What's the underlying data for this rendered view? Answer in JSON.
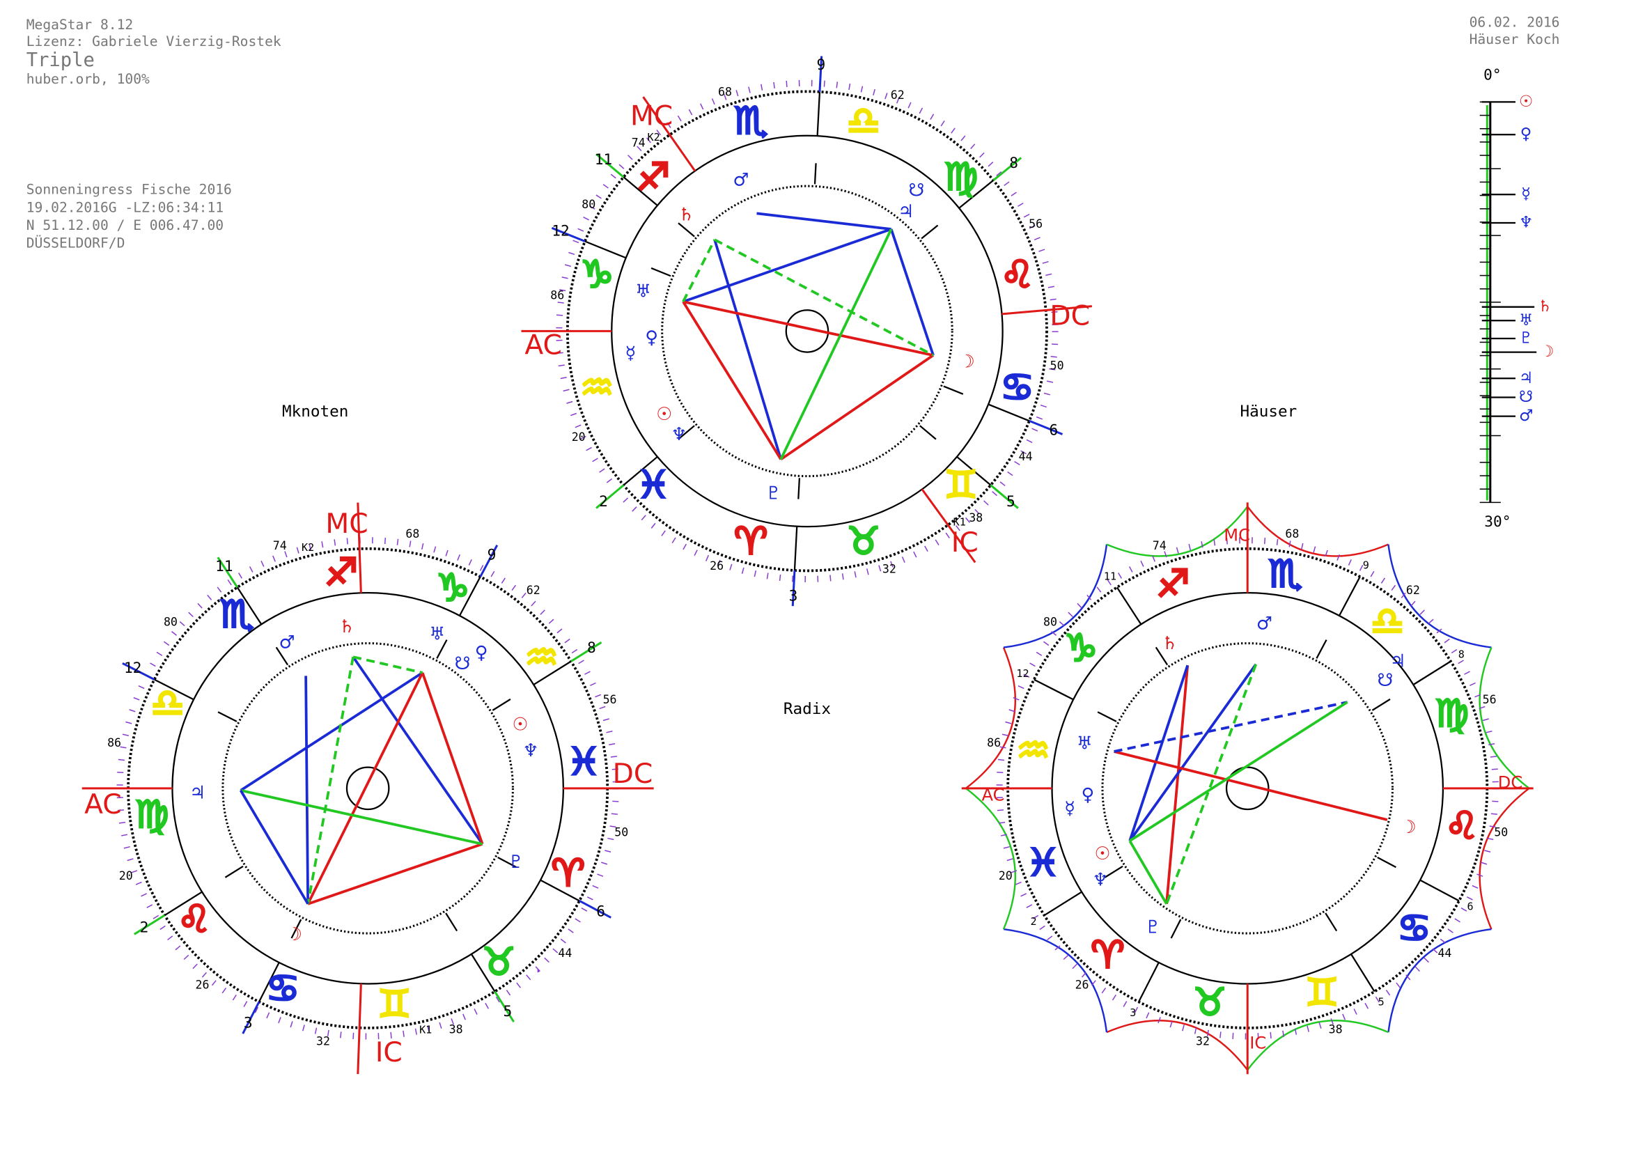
{
  "header": {
    "program": "MegaStar 8.12",
    "license": "Lizenz: Gabriele Vierzig-Rostek",
    "title": "Triple",
    "orb": "huber.orb, 100%"
  },
  "print_info": {
    "date": "06.02. 2016",
    "house_system": "Häuser Koch"
  },
  "event": {
    "name": "Sonneningress Fische 2016",
    "date_time": "19.02.2016G -LZ:06:34:11",
    "coordinates": "N 51.12.00 / E 006.47.00",
    "place": "DÜSSELDORF/D"
  },
  "wheels": [
    {
      "label": "Radix",
      "house_numbers": [
        9,
        8,
        6,
        5,
        3,
        2,
        12,
        11
      ],
      "degree_labels": [
        68,
        62,
        56,
        50,
        44,
        38,
        32,
        26,
        20,
        86,
        80,
        74
      ],
      "angles": [
        "MC",
        "AC",
        "DC",
        "IC"
      ],
      "cusp_markers": [
        "K1",
        "K2"
      ],
      "signs": [
        "♈",
        "♉",
        "♊",
        "♋",
        "♌",
        "♍",
        "♎",
        "♏",
        "♐",
        "♑",
        "♒",
        "♓"
      ],
      "planets": [
        "♂",
        "☋",
        "♃",
        "♄",
        "♅",
        "♀",
        "☿",
        "☉",
        "♆",
        "♇",
        "☽"
      ]
    },
    {
      "label": "Mknoten",
      "house_numbers": [
        9,
        8,
        6,
        5,
        3,
        2,
        12,
        11
      ],
      "degree_labels": [
        68,
        62,
        56,
        50,
        44,
        38,
        32,
        26,
        20,
        86,
        80,
        74
      ],
      "angles": [
        "MC",
        "AC",
        "DC",
        "IC"
      ],
      "cusp_markers": [
        "K1",
        "K2"
      ],
      "signs": [
        "♈",
        "♉",
        "♊",
        "♋",
        "♌",
        "♍",
        "♎",
        "♏",
        "♐",
        "♑",
        "♒",
        "♓"
      ],
      "planets": [
        "♂",
        "♄",
        "♅",
        "☋",
        "♀",
        "☉",
        "♆",
        "♃",
        "♇",
        "☽"
      ]
    },
    {
      "label": "Häuser",
      "house_numbers": [
        9,
        8,
        6,
        5,
        3,
        2,
        12,
        11
      ],
      "degree_labels": [
        68,
        62,
        56,
        50,
        44,
        38,
        32,
        26,
        20,
        86,
        80,
        74
      ],
      "angles": [
        "MC",
        "AC",
        "DC",
        "IC"
      ],
      "signs": [
        "♈",
        "♉",
        "♊",
        "♋",
        "♌",
        "♍",
        "♎",
        "♏",
        "♐",
        "♑",
        "♒",
        "♓"
      ],
      "planets": [
        "♂",
        "♄",
        "☋",
        "♃",
        "♅",
        "♀",
        "☿",
        "☉",
        "♆",
        "♇",
        "☽"
      ]
    }
  ],
  "scale": {
    "start": "0°",
    "end": "30°",
    "planets": [
      "☉",
      "♀",
      "☿",
      "♆",
      "♄",
      "♅",
      "♇",
      "☽",
      "♃",
      "☋",
      "♂"
    ]
  }
}
